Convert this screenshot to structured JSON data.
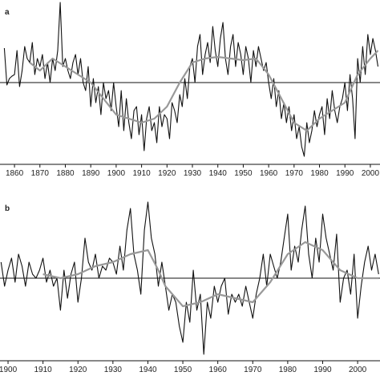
{
  "chart_data": [
    {
      "type": "line",
      "label": "a",
      "xlim": [
        1854.3,
        2003.8
      ],
      "ylim": [
        -1.02,
        1.03
      ],
      "xticks": [
        1860,
        1870,
        1880,
        1890,
        1900,
        1910,
        1920,
        1930,
        1940,
        1950,
        1960,
        1970,
        1980,
        1990,
        2000
      ],
      "series": [
        {
          "color": "#111111",
          "x": [
            1856,
            1857,
            1858,
            1859,
            1860,
            1861,
            1862,
            1863,
            1864,
            1865,
            1866,
            1867,
            1868,
            1869,
            1870,
            1871,
            1872,
            1873,
            1874,
            1875,
            1876,
            1877,
            1878,
            1879,
            1880,
            1881,
            1882,
            1883,
            1884,
            1885,
            1886,
            1887,
            1888,
            1889,
            1890,
            1891,
            1892,
            1893,
            1894,
            1895,
            1896,
            1897,
            1898,
            1899,
            1900,
            1901,
            1902,
            1903,
            1904,
            1905,
            1906,
            1907,
            1908,
            1909,
            1910,
            1911,
            1912,
            1913,
            1914,
            1915,
            1916,
            1917,
            1918,
            1919,
            1920,
            1921,
            1922,
            1923,
            1924,
            1925,
            1926,
            1927,
            1928,
            1929,
            1930,
            1931,
            1932,
            1933,
            1934,
            1935,
            1936,
            1937,
            1938,
            1939,
            1940,
            1941,
            1942,
            1943,
            1944,
            1945,
            1946,
            1947,
            1948,
            1949,
            1950,
            1951,
            1952,
            1953,
            1954,
            1955,
            1956,
            1957,
            1958,
            1959,
            1960,
            1961,
            1962,
            1963,
            1964,
            1965,
            1966,
            1967,
            1968,
            1969,
            1970,
            1971,
            1972,
            1973,
            1974,
            1975,
            1976,
            1977,
            1978,
            1979,
            1980,
            1981,
            1982,
            1983,
            1984,
            1985,
            1986,
            1987,
            1988,
            1989,
            1990,
            1991,
            1992,
            1993,
            1994,
            1995,
            1996,
            1997,
            1998,
            1999,
            2000,
            2001,
            2002,
            2003
          ],
          "values": [
            0.43,
            -0.03,
            0.05,
            0.08,
            0.1,
            0.4,
            -0.05,
            0.15,
            0.45,
            0.3,
            0.25,
            0.5,
            0.1,
            0.3,
            0.2,
            0.35,
            0.05,
            0.25,
            0.0,
            0.3,
            0.15,
            0.4,
            1.0,
            0.2,
            0.3,
            0.15,
            0.05,
            0.25,
            0.35,
            0.1,
            0.3,
            0.0,
            -0.1,
            0.2,
            -0.3,
            0.05,
            -0.25,
            -0.05,
            -0.4,
            0.0,
            -0.2,
            -0.1,
            -0.35,
            0.0,
            -0.3,
            -0.55,
            -0.1,
            -0.6,
            -0.2,
            -0.5,
            -0.7,
            -0.35,
            -0.3,
            -0.65,
            -0.4,
            -0.85,
            -0.45,
            -0.3,
            -0.6,
            -0.5,
            -0.75,
            -0.3,
            -0.55,
            -0.4,
            -0.45,
            -0.7,
            -0.25,
            -0.35,
            -0.5,
            -0.15,
            -0.3,
            0.05,
            -0.2,
            0.2,
            0.3,
            0.0,
            0.45,
            0.6,
            0.1,
            0.35,
            0.5,
            0.25,
            0.7,
            0.4,
            0.2,
            0.55,
            0.75,
            0.3,
            0.1,
            0.45,
            0.6,
            0.2,
            0.5,
            0.35,
            0.1,
            0.45,
            0.3,
            0.0,
            0.4,
            0.2,
            0.45,
            0.3,
            0.15,
            0.25,
            0.0,
            -0.2,
            0.05,
            -0.3,
            -0.1,
            -0.45,
            -0.25,
            -0.5,
            -0.3,
            -0.6,
            -0.4,
            -0.7,
            -0.55,
            -0.8,
            -0.92,
            -0.5,
            -0.75,
            -0.6,
            -0.35,
            -0.55,
            -0.4,
            -0.3,
            -0.65,
            -0.2,
            -0.45,
            -0.1,
            -0.35,
            -0.5,
            -0.3,
            -0.2,
            0.0,
            -0.35,
            0.1,
            -0.2,
            -0.7,
            0.3,
            0.0,
            0.45,
            0.1,
            0.6,
            0.35,
            0.55,
            0.4,
            0.2
          ]
        },
        {
          "color": "#999999",
          "x": [
            1866,
            1870,
            1875,
            1880,
            1885,
            1890,
            1895,
            1900,
            1905,
            1910,
            1915,
            1920,
            1925,
            1930,
            1935,
            1940,
            1945,
            1950,
            1955,
            1960,
            1965,
            1970,
            1975,
            1980,
            1985,
            1990,
            1995,
            2000,
            2003
          ],
          "values": [
            0.25,
            0.15,
            0.3,
            0.2,
            0.1,
            0.0,
            -0.2,
            -0.4,
            -0.45,
            -0.5,
            -0.45,
            -0.3,
            0.0,
            0.25,
            0.3,
            0.32,
            0.3,
            0.28,
            0.3,
            0.1,
            -0.2,
            -0.5,
            -0.6,
            -0.45,
            -0.35,
            -0.25,
            0.1,
            0.3,
            0.4
          ]
        }
      ]
    },
    {
      "type": "line",
      "label": "b",
      "xlim": [
        1897.7,
        2006.4
      ],
      "ylim": [
        -1.03,
        1.02
      ],
      "xticks": [
        1900,
        1910,
        1920,
        1930,
        1940,
        1950,
        1960,
        1970,
        1980,
        1990,
        2000
      ],
      "series": [
        {
          "color": "#111111",
          "x": [
            1898,
            1899,
            1900,
            1901,
            1902,
            1903,
            1904,
            1905,
            1906,
            1907,
            1908,
            1909,
            1910,
            1911,
            1912,
            1913,
            1914,
            1915,
            1916,
            1917,
            1918,
            1919,
            1920,
            1921,
            1922,
            1923,
            1924,
            1925,
            1926,
            1927,
            1928,
            1929,
            1930,
            1931,
            1932,
            1933,
            1934,
            1935,
            1936,
            1937,
            1938,
            1939,
            1940,
            1941,
            1942,
            1943,
            1944,
            1945,
            1946,
            1947,
            1948,
            1949,
            1950,
            1951,
            1952,
            1953,
            1954,
            1955,
            1956,
            1957,
            1958,
            1959,
            1960,
            1961,
            1962,
            1963,
            1964,
            1965,
            1966,
            1967,
            1968,
            1969,
            1970,
            1971,
            1972,
            1973,
            1974,
            1975,
            1976,
            1977,
            1978,
            1979,
            1980,
            1981,
            1982,
            1983,
            1984,
            1985,
            1986,
            1987,
            1988,
            1989,
            1990,
            1991,
            1992,
            1993,
            1994,
            1995,
            1996,
            1997,
            1998,
            1999,
            2000,
            2001,
            2002,
            2003,
            2004,
            2005,
            2006
          ],
          "values": [
            0.2,
            -0.1,
            0.1,
            0.25,
            -0.05,
            0.3,
            0.15,
            -0.1,
            0.2,
            0.05,
            0.0,
            0.1,
            0.25,
            -0.05,
            0.1,
            -0.1,
            0.0,
            -0.4,
            0.1,
            -0.25,
            0.05,
            0.2,
            -0.3,
            0.0,
            0.5,
            0.2,
            0.1,
            0.3,
            0.0,
            0.15,
            0.1,
            0.25,
            0.2,
            0.05,
            0.4,
            0.1,
            0.6,
            0.87,
            0.3,
            0.1,
            -0.2,
            0.6,
            0.95,
            0.5,
            0.3,
            -0.1,
            0.2,
            -0.1,
            -0.4,
            -0.2,
            -0.3,
            -0.6,
            -0.8,
            -0.3,
            -0.55,
            0.1,
            -0.4,
            -0.2,
            -0.95,
            -0.3,
            -0.5,
            -0.1,
            -0.3,
            -0.1,
            0.0,
            -0.45,
            -0.2,
            -0.3,
            -0.2,
            -0.35,
            -0.1,
            -0.3,
            -0.5,
            -0.2,
            0.0,
            0.3,
            -0.1,
            0.3,
            0.15,
            0.0,
            0.2,
            0.5,
            0.8,
            0.1,
            0.4,
            0.2,
            0.6,
            0.9,
            0.3,
            0.0,
            0.5,
            0.2,
            0.8,
            0.5,
            0.3,
            0.1,
            0.55,
            -0.3,
            0.0,
            0.1,
            -0.2,
            0.3,
            -0.5,
            -0.1,
            0.2,
            0.4,
            0.1,
            0.3,
            0.05
          ]
        },
        {
          "color": "#999999",
          "x": [
            1910,
            1915,
            1920,
            1925,
            1930,
            1935,
            1940,
            1943,
            1945,
            1950,
            1955,
            1960,
            1965,
            1970,
            1975,
            1980,
            1985,
            1990,
            1995,
            2000,
            2006
          ],
          "values": [
            0.05,
            0.0,
            0.05,
            0.15,
            0.2,
            0.3,
            0.35,
            0.1,
            -0.1,
            -0.35,
            -0.3,
            -0.2,
            -0.25,
            -0.3,
            -0.05,
            0.3,
            0.45,
            0.35,
            0.1,
            0.0,
            0.0
          ]
        }
      ]
    }
  ]
}
